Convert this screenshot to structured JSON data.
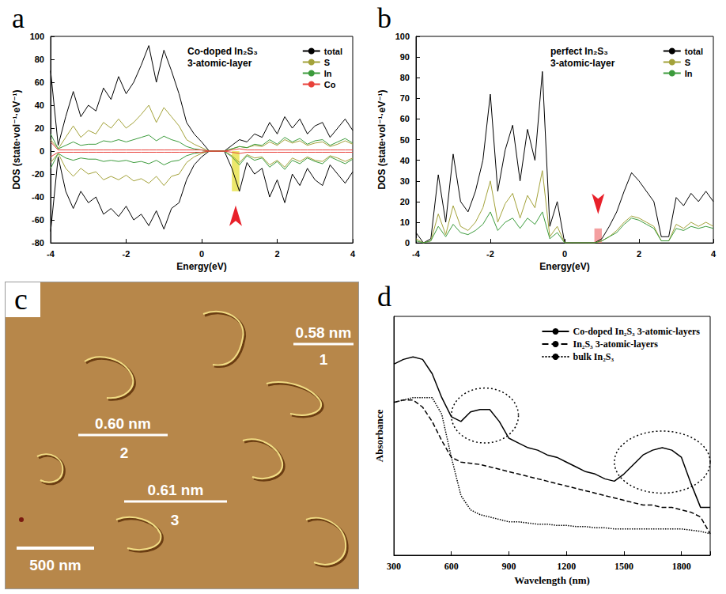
{
  "chart_data": [
    {
      "panel": "a",
      "type": "line",
      "title": "Co-doped In₂S₃ 3-atomic-layer",
      "x_label": "Energy(eV)",
      "y_label": "DOS (state·vol⁻¹·eV⁻¹)",
      "x": [
        -4,
        -3.8,
        -3.6,
        -3.4,
        -3.2,
        -3,
        -2.8,
        -2.6,
        -2.4,
        -2.2,
        -2,
        -1.8,
        -1.6,
        -1.4,
        -1.2,
        -1,
        -0.8,
        -0.6,
        -0.4,
        -0.2,
        0,
        0.2,
        0.4,
        0.6,
        0.8,
        1,
        1.2,
        1.4,
        1.6,
        1.8,
        2,
        2.2,
        2.4,
        2.6,
        2.8,
        3,
        3.2,
        3.4,
        3.6,
        3.8,
        4
      ],
      "series": [
        {
          "name": "total",
          "color": "#000000",
          "values": [
            70,
            5,
            30,
            52,
            30,
            40,
            35,
            55,
            45,
            65,
            50,
            60,
            75,
            92,
            60,
            88,
            70,
            50,
            25,
            15,
            8,
            0,
            0,
            0,
            5,
            10,
            8,
            15,
            12,
            25,
            15,
            30,
            20,
            28,
            15,
            22,
            25,
            12,
            20,
            28,
            18
          ],
          "spin_down": [
            -70,
            -5,
            -35,
            -50,
            -35,
            -45,
            -40,
            -55,
            -50,
            -57,
            -48,
            -60,
            -55,
            -65,
            -52,
            -68,
            -50,
            -45,
            -25,
            -12,
            -5,
            0,
            0,
            0,
            -15,
            -35,
            -10,
            -20,
            -15,
            -40,
            -25,
            -45,
            -20,
            -30,
            -15,
            -25,
            -30,
            -12,
            -20,
            -28,
            -18
          ]
        },
        {
          "name": "S",
          "color": "#a3a23a",
          "values": [
            10,
            2,
            12,
            22,
            12,
            18,
            15,
            25,
            20,
            28,
            20,
            25,
            32,
            40,
            25,
            38,
            30,
            22,
            10,
            6,
            3,
            0,
            0,
            0,
            2,
            4,
            3,
            5,
            4,
            8,
            5,
            10,
            7,
            9,
            5,
            7,
            8,
            4,
            6,
            9,
            6
          ],
          "spin_down": [
            -10,
            -2,
            -15,
            -22,
            -15,
            -20,
            -18,
            -25,
            -22,
            -25,
            -21,
            -26,
            -24,
            -28,
            -22,
            -30,
            -22,
            -20,
            -10,
            -5,
            -2,
            0,
            0,
            0,
            -4,
            -10,
            -3,
            -6,
            -5,
            -12,
            -8,
            -14,
            -6,
            -9,
            -5,
            -8,
            -9,
            -4,
            -6,
            -9,
            -6
          ]
        },
        {
          "name": "In",
          "color": "#3c9b3c",
          "values": [
            15,
            2,
            5,
            8,
            5,
            6,
            6,
            9,
            8,
            10,
            8,
            10,
            12,
            14,
            9,
            13,
            10,
            8,
            4,
            2,
            1,
            0,
            0,
            0,
            2,
            4,
            3,
            6,
            5,
            10,
            6,
            12,
            8,
            11,
            6,
            9,
            10,
            5,
            8,
            11,
            7
          ],
          "spin_down": [
            -15,
            -2,
            -6,
            -8,
            -6,
            -7,
            -7,
            -9,
            -8,
            -9,
            -8,
            -10,
            -9,
            -11,
            -8,
            -12,
            -9,
            -8,
            -4,
            -2,
            -1,
            0,
            0,
            0,
            -5,
            -12,
            -4,
            -8,
            -6,
            -14,
            -9,
            -16,
            -8,
            -11,
            -6,
            -9,
            -11,
            -5,
            -8,
            -11,
            -7
          ]
        },
        {
          "name": "Co",
          "color": "#e8413a",
          "values": [
            8,
            1,
            1,
            1,
            1,
            1,
            1,
            1,
            1,
            1,
            1,
            1,
            1,
            1,
            1,
            1,
            1,
            1,
            1,
            1,
            1,
            0,
            0,
            0,
            1,
            2,
            1,
            1,
            1,
            1,
            1,
            1,
            1,
            1,
            1,
            1,
            1,
            1,
            1,
            1,
            1
          ],
          "spin_down": [
            -5,
            -1,
            -1,
            -1,
            -1,
            -1,
            -1,
            -1,
            -1,
            -1,
            -1,
            -1,
            -1,
            -1,
            -1,
            -1,
            -1,
            -1,
            -1,
            -1,
            -1,
            0,
            0,
            0,
            -1,
            -2,
            -1,
            -1,
            -1,
            -1,
            -1,
            -1,
            -1,
            -1,
            -1,
            -1,
            -1,
            -1,
            -1,
            -1,
            -1
          ]
        }
      ],
      "xlim": [
        -4,
        4
      ],
      "xticks": [
        -4,
        -2,
        0,
        2,
        4
      ],
      "ylim": [
        -80,
        100
      ],
      "yticks": [
        -80,
        -60,
        -40,
        -20,
        0,
        20,
        40,
        60,
        80,
        100
      ],
      "grid": false,
      "legend": "top-right",
      "highlight": {
        "x": [
          0.8,
          1.0
        ],
        "y": [
          -35,
          0
        ],
        "color": "#e6e03a",
        "arrow": "up"
      }
    },
    {
      "panel": "b",
      "type": "line",
      "title": "perfect In₂S₃ 3-atomic-layer",
      "x_label": "Energy(eV)",
      "y_label": "DOS (state·vol⁻¹·eV⁻¹)",
      "x": [
        -4,
        -3.8,
        -3.6,
        -3.4,
        -3.2,
        -3,
        -2.8,
        -2.6,
        -2.4,
        -2.2,
        -2,
        -1.8,
        -1.6,
        -1.4,
        -1.2,
        -1,
        -0.8,
        -0.6,
        -0.4,
        -0.2,
        0,
        0.2,
        0.4,
        0.6,
        0.8,
        1,
        1.2,
        1.4,
        1.6,
        1.8,
        2,
        2.2,
        2.4,
        2.6,
        2.8,
        3,
        3.2,
        3.4,
        3.6,
        3.8,
        4
      ],
      "series": [
        {
          "name": "total",
          "color": "#000000",
          "values": [
            5,
            0,
            2,
            33,
            10,
            43,
            20,
            15,
            25,
            40,
            72,
            25,
            45,
            57,
            30,
            55,
            40,
            83,
            8,
            20,
            0,
            0,
            0,
            0,
            0,
            2,
            8,
            15,
            25,
            34,
            30,
            25,
            20,
            3,
            3,
            22,
            18,
            24,
            20,
            25,
            20
          ]
        },
        {
          "name": "S",
          "color": "#a3a23a",
          "values": [
            2,
            0,
            1,
            14,
            4,
            18,
            8,
            6,
            10,
            17,
            30,
            10,
            19,
            24,
            12,
            23,
            17,
            35,
            3,
            8,
            0,
            0,
            0,
            0,
            0,
            1,
            3,
            6,
            10,
            13,
            12,
            10,
            8,
            1,
            1,
            9,
            7,
            10,
            8,
            10,
            8
          ]
        },
        {
          "name": "In",
          "color": "#3c9b3c",
          "values": [
            1,
            0,
            1,
            8,
            3,
            9,
            5,
            4,
            6,
            9,
            15,
            6,
            10,
            12,
            7,
            12,
            9,
            15,
            2,
            5,
            0,
            0,
            0,
            0,
            0,
            1,
            3,
            5,
            9,
            12,
            11,
            9,
            7,
            1,
            1,
            7,
            6,
            8,
            7,
            8,
            7
          ]
        }
      ],
      "xlim": [
        -4,
        4
      ],
      "xticks": [
        -4,
        -2,
        0,
        2,
        4
      ],
      "ylim": [
        0,
        100
      ],
      "yticks": [
        0,
        10,
        20,
        30,
        40,
        50,
        60,
        70,
        80,
        90,
        100
      ],
      "grid": false,
      "legend": "top-right",
      "highlight": {
        "x": [
          0.8,
          1.0
        ],
        "y": [
          0,
          7
        ],
        "color": "#f07f80",
        "arrow": "down"
      }
    },
    {
      "panel": "d",
      "type": "line",
      "x_label": "Wavelength (nm)",
      "y_label": "Absorbance",
      "x": [
        300,
        350,
        400,
        450,
        500,
        550,
        600,
        650,
        700,
        750,
        800,
        850,
        900,
        950,
        1000,
        1050,
        1100,
        1150,
        1200,
        1250,
        1300,
        1350,
        1400,
        1450,
        1500,
        1550,
        1600,
        1650,
        1700,
        1750,
        1800,
        1850,
        1900,
        1950
      ],
      "series": [
        {
          "name": "Co-doped In₂S₃ 3-atomic-layers",
          "color": "#000000",
          "line_style": "solid",
          "values": [
            0.8,
            0.82,
            0.83,
            0.82,
            0.76,
            0.66,
            0.58,
            0.56,
            0.6,
            0.61,
            0.61,
            0.56,
            0.49,
            0.47,
            0.45,
            0.44,
            0.42,
            0.41,
            0.39,
            0.37,
            0.35,
            0.34,
            0.32,
            0.31,
            0.34,
            0.38,
            0.42,
            0.44,
            0.45,
            0.44,
            0.41,
            0.3,
            0.2,
            0.2
          ]
        },
        {
          "name": "In₂S₃ 3-atomic-layers",
          "color": "#000000",
          "line_style": "dashed",
          "values": [
            0.64,
            0.65,
            0.65,
            0.62,
            0.56,
            0.48,
            0.41,
            0.39,
            0.385,
            0.38,
            0.37,
            0.36,
            0.35,
            0.34,
            0.33,
            0.32,
            0.31,
            0.3,
            0.29,
            0.28,
            0.27,
            0.26,
            0.25,
            0.24,
            0.23,
            0.22,
            0.21,
            0.21,
            0.2,
            0.2,
            0.19,
            0.18,
            0.16,
            0.09
          ]
        },
        {
          "name": "bulk In₂S₃",
          "color": "#000000",
          "line_style": "dotted",
          "values": [
            0.64,
            0.65,
            0.66,
            0.66,
            0.66,
            0.59,
            0.41,
            0.25,
            0.19,
            0.17,
            0.16,
            0.15,
            0.14,
            0.14,
            0.135,
            0.13,
            0.13,
            0.125,
            0.125,
            0.12,
            0.12,
            0.115,
            0.115,
            0.11,
            0.11,
            0.11,
            0.11,
            0.11,
            0.11,
            0.11,
            0.11,
            0.105,
            0.1,
            0.09
          ]
        }
      ],
      "xlim": [
        300,
        1950
      ],
      "xticks": [
        300,
        600,
        900,
        1200,
        1500,
        1800
      ],
      "ylim": [
        0,
        1
      ],
      "yticks": [],
      "tick_labels": "x",
      "grid": false,
      "legend": "top-right",
      "circled": [
        {
          "x": [
            600,
            950
          ],
          "y": [
            0.47,
            0.7
          ]
        },
        {
          "x": [
            1450,
            1950
          ],
          "y": [
            0.26,
            0.52
          ]
        }
      ]
    }
  ],
  "panel_c": {
    "panel": "c",
    "heights": [
      {
        "label": "0.58 nm",
        "number": "1"
      },
      {
        "label": "0.60 nm",
        "number": "2"
      },
      {
        "label": "0.61 nm",
        "number": "3"
      }
    ],
    "scale_bar": "500 nm"
  }
}
